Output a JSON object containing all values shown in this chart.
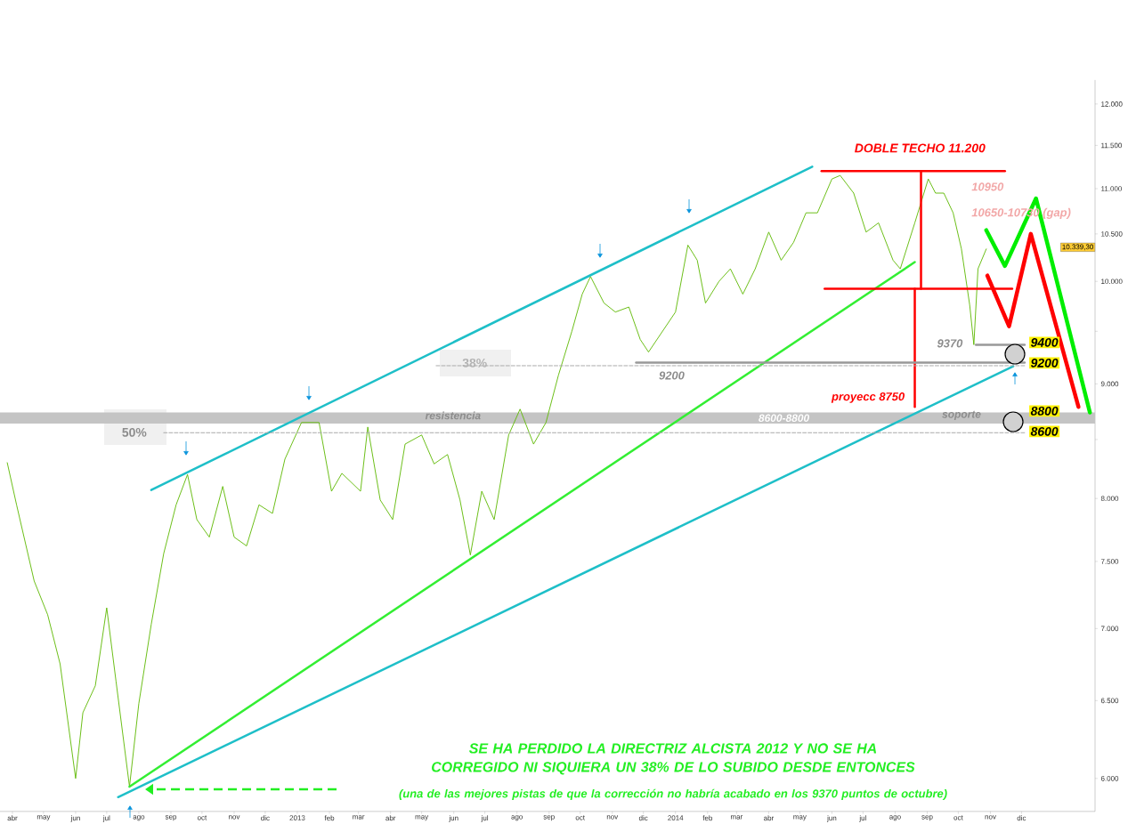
{
  "chart_data": {
    "type": "line",
    "log": "y",
    "xlim": [
      "2012-03-20",
      "2015-02-10"
    ],
    "ylim": [
      5800,
      12300
    ],
    "yticks": [
      {
        "value": 6000,
        "label": "6.000"
      },
      {
        "value": 6500,
        "label": "6.500"
      },
      {
        "value": 7000,
        "label": "7.000"
      },
      {
        "value": 7500,
        "label": "7.500"
      },
      {
        "value": 8000,
        "label": "8.000"
      },
      {
        "value": 8500,
        "label": null
      },
      {
        "value": 9000,
        "label": "9.000"
      },
      {
        "value": 9500,
        "label": null
      },
      {
        "value": 10000,
        "label": "10.000"
      },
      {
        "value": 10500,
        "label": "10.500"
      },
      {
        "value": 11000,
        "label": "11.000"
      },
      {
        "value": 11500,
        "label": "11.500"
      },
      {
        "value": 12000,
        "label": "12.000"
      }
    ],
    "xticks": [
      {
        "value": "2012-04-01",
        "label": "abr"
      },
      {
        "value": "2012-05-01",
        "label": "may"
      },
      {
        "value": "2012-06-01",
        "label": "jun"
      },
      {
        "value": "2012-07-01",
        "label": "jul"
      },
      {
        "value": "2012-08-01",
        "label": "ago"
      },
      {
        "value": "2012-09-01",
        "label": "sep"
      },
      {
        "value": "2012-10-01",
        "label": "oct"
      },
      {
        "value": "2012-11-01",
        "label": "nov"
      },
      {
        "value": "2012-12-01",
        "label": "dic"
      },
      {
        "value": "2013-01-01",
        "label": "2013"
      },
      {
        "value": "2013-02-01",
        "label": "feb"
      },
      {
        "value": "2013-03-01",
        "label": "mar"
      },
      {
        "value": "2013-04-01",
        "label": "abr"
      },
      {
        "value": "2013-05-01",
        "label": "may"
      },
      {
        "value": "2013-06-01",
        "label": "jun"
      },
      {
        "value": "2013-07-01",
        "label": "jul"
      },
      {
        "value": "2013-08-01",
        "label": "ago"
      },
      {
        "value": "2013-09-01",
        "label": "sep"
      },
      {
        "value": "2013-10-01",
        "label": "oct"
      },
      {
        "value": "2013-11-01",
        "label": "nov"
      },
      {
        "value": "2013-12-01",
        "label": "dic"
      },
      {
        "value": "2014-01-01",
        "label": "2014"
      },
      {
        "value": "2014-02-01",
        "label": "feb"
      },
      {
        "value": "2014-03-01",
        "label": "mar"
      },
      {
        "value": "2014-04-01",
        "label": "abr"
      },
      {
        "value": "2014-05-01",
        "label": "may"
      },
      {
        "value": "2014-06-01",
        "label": "jun"
      },
      {
        "value": "2014-07-01",
        "label": "jul"
      },
      {
        "value": "2014-08-01",
        "label": "ago"
      },
      {
        "value": "2014-09-01",
        "label": "sep"
      },
      {
        "value": "2014-10-01",
        "label": "oct"
      },
      {
        "value": "2014-11-01",
        "label": "nov"
      },
      {
        "value": "2014-12-01",
        "label": "dic"
      }
    ],
    "bands": [
      {
        "axis": "y",
        "from": 8640,
        "to": 8740,
        "label": "8600-8800",
        "color": "#c4c4c4"
      }
    ],
    "series": [
      {
        "color": "#5cb800",
        "x": [
          "2012-03-27",
          "2012-04-05",
          "2012-04-22",
          "2012-05-05",
          "2012-05-17",
          "2012-06-01",
          "2012-06-08",
          "2012-06-20",
          "2012-07-01",
          "2012-07-10",
          "2012-07-23",
          "2012-08-01",
          "2012-08-13",
          "2012-08-25",
          "2012-09-06",
          "2012-09-17",
          "2012-09-26",
          "2012-10-08",
          "2012-10-21",
          "2012-11-01",
          "2012-11-13",
          "2012-11-25",
          "2012-12-08",
          "2012-12-20",
          "2013-01-05",
          "2013-01-22",
          "2013-02-03",
          "2013-02-13",
          "2013-03-03",
          "2013-03-10",
          "2013-03-22",
          "2013-04-03",
          "2013-04-15",
          "2013-05-01",
          "2013-05-13",
          "2013-05-26",
          "2013-06-07",
          "2013-06-17",
          "2013-06-28",
          "2013-07-10",
          "2013-07-24",
          "2013-08-04",
          "2013-08-17",
          "2013-08-29",
          "2013-09-10",
          "2013-09-23",
          "2013-10-03",
          "2013-10-11",
          "2013-10-24",
          "2013-11-04",
          "2013-11-17",
          "2013-11-28",
          "2013-12-06",
          "2014-01-01",
          "2014-01-13",
          "2014-01-22",
          "2014-01-30",
          "2014-02-12",
          "2014-02-23",
          "2014-03-07",
          "2014-03-19",
          "2014-04-01",
          "2014-04-13",
          "2014-04-25",
          "2014-05-07",
          "2014-05-18",
          "2014-06-01",
          "2014-06-09",
          "2014-06-22",
          "2014-07-04",
          "2014-07-16",
          "2014-07-30",
          "2014-08-06",
          "2014-08-20",
          "2014-09-02",
          "2014-09-09",
          "2014-09-17",
          "2014-09-26",
          "2014-10-04",
          "2014-10-12",
          "2014-10-16",
          "2014-10-20",
          "2014-10-28"
        ],
        "values": [
          8300,
          7950,
          7350,
          7100,
          6750,
          6000,
          6420,
          6600,
          7150,
          6630,
          5950,
          6480,
          7030,
          7560,
          7950,
          8200,
          7830,
          7690,
          8100,
          7690,
          7620,
          7950,
          7880,
          8330,
          8650,
          8650,
          8060,
          8210,
          8060,
          8610,
          7990,
          7830,
          8460,
          8540,
          8290,
          8370,
          7990,
          7550,
          8060,
          7830,
          8540,
          8770,
          8460,
          8650,
          9080,
          9500,
          9870,
          10050,
          9780,
          9690,
          9740,
          9420,
          9300,
          9690,
          10380,
          10220,
          9780,
          10000,
          10130,
          9870,
          10130,
          10520,
          10220,
          10410,
          10730,
          10730,
          11110,
          11150,
          10950,
          10520,
          10620,
          10220,
          10130,
          10620,
          11110,
          10950,
          10950,
          10730,
          10340,
          9760,
          9370,
          10130,
          10339
        ]
      },
      {
        "color": "#1ebfc8",
        "x": [
          "2012-08-13",
          "2014-05-13"
        ],
        "values": [
          8070,
          11250
        ]
      },
      {
        "color": "#1ebfc8",
        "x": [
          "2012-07-12",
          "2014-11-23"
        ],
        "values": [
          5886,
          9165
        ]
      },
      {
        "color": "#33ee33",
        "x": [
          "2012-07-23",
          "2014-08-20"
        ],
        "values": [
          5950,
          10200
        ]
      },
      {
        "color": "#ff0000",
        "x": [
          "2014-05-22",
          "2014-11-15"
        ],
        "values": [
          11200,
          11200
        ]
      },
      {
        "color": "#ff0000",
        "x": [
          "2014-05-25",
          "2014-11-22"
        ],
        "values": [
          9925,
          9925
        ]
      },
      {
        "color": "#ff0000",
        "x": [
          "2014-08-26",
          "2014-08-26"
        ],
        "values": [
          11200,
          9925
        ]
      },
      {
        "color": "#ff0000",
        "x": [
          "2014-08-20",
          "2014-08-20"
        ],
        "values": [
          9925,
          8790
        ]
      },
      {
        "color": "#999999",
        "x": [
          "2013-11-24",
          "2014-12-04"
        ],
        "values": [
          9200,
          9200
        ]
      },
      {
        "color": "#999999",
        "x": [
          "2014-10-18",
          "2014-12-04"
        ],
        "values": [
          9370,
          9370
        ]
      },
      {
        "color": "#aaaaaa",
        "line_style": "dashed",
        "x": [
          "2013-05-15",
          "2014-12-04"
        ],
        "values": [
          9170,
          9170
        ]
      },
      {
        "color": "#aaaaaa",
        "line_style": "dashed",
        "x": [
          "2012-08-25",
          "2014-12-04"
        ],
        "values": [
          8560,
          8560
        ]
      },
      {
        "color": "#00ee00",
        "x": [
          "2014-10-28",
          "2014-11-15",
          "2014-12-15",
          "2015-02-05"
        ],
        "values": [
          10540,
          10160,
          10890,
          8740
        ]
      },
      {
        "color": "#ff0000",
        "x": [
          "2014-10-29",
          "2014-11-19",
          "2014-12-10",
          "2015-01-25"
        ],
        "values": [
          10060,
          9550,
          10500,
          8790
        ]
      }
    ],
    "annotations": [
      "DOBLE TECHO 11.200",
      "10950",
      "10650-10730 (gap)",
      "9370",
      "9200",
      "proyecc 8750",
      "38%",
      "50%",
      "resistencia",
      "soporte",
      "9400",
      "9200",
      "8800",
      "8600",
      "10.339,30",
      "SE HA PERDIDO LA DIRECTRIZ ALCISTA 2012 Y NO SE HA CORREGIDO NI SIQUIERA UN 38% DE LO SUBIDO DESDE ENTONCES",
      "(una de las mejores pistas de que la corrección no habría acabado en los 9370 puntos de octubre)"
    ]
  }
}
